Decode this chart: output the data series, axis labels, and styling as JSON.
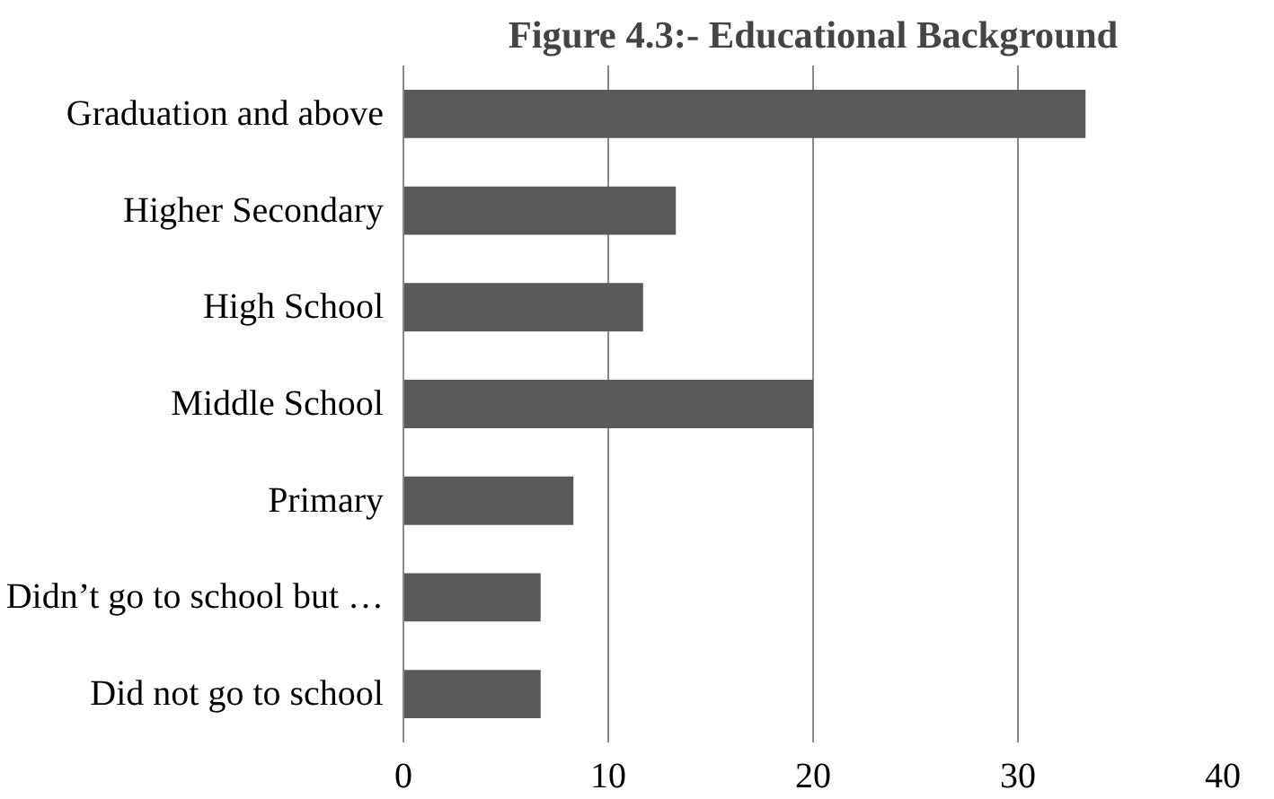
{
  "chart_data": {
    "type": "bar",
    "orientation": "horizontal",
    "title": "Figure 4.3:- Educational Background",
    "categories": [
      "Graduation and above",
      "Higher Secondary",
      "High School",
      "Middle School",
      "Primary",
      "Didn’t go to school but …",
      "Did not go to school"
    ],
    "values": [
      33.3,
      13.3,
      11.7,
      20,
      8.3,
      6.7,
      6.7
    ],
    "color": "#595959",
    "xlim": [
      0,
      40
    ],
    "xticks": [
      0,
      10,
      20,
      30,
      40
    ],
    "grid": "x"
  }
}
